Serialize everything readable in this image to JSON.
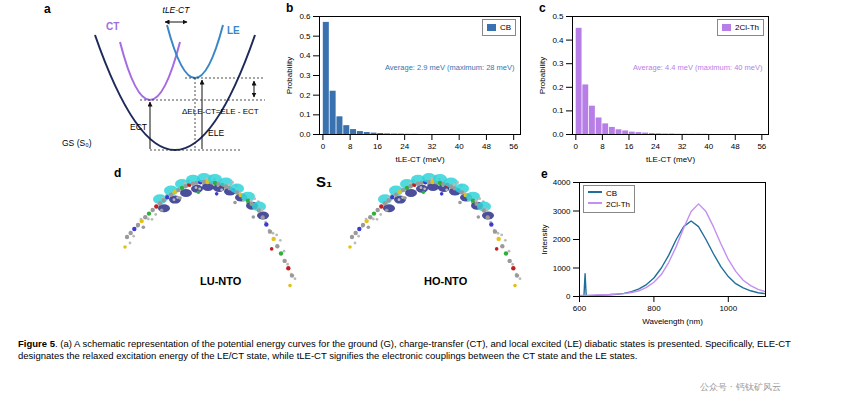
{
  "chart_data": [
    {
      "panel": "b",
      "type": "histogram",
      "xlabel": "tLE-CT (meV)",
      "ylabel": "Probability",
      "bins": [
        0,
        2,
        4,
        6,
        8,
        10,
        12,
        14,
        16,
        18,
        20,
        22,
        24,
        26,
        28
      ],
      "series": [
        {
          "name": "CB",
          "color": "#3a72b0",
          "values": [
            0.57,
            0.22,
            0.09,
            0.045,
            0.025,
            0.015,
            0.01,
            0.007,
            0.005,
            0.003,
            0.002,
            0.002,
            0.001,
            0.001
          ]
        }
      ],
      "annotation": "Average: 2.9 meV (maximum: 28 meV)",
      "xlim": [
        -1,
        58
      ],
      "xticks": [
        0,
        8,
        16,
        24,
        32,
        40,
        48,
        56
      ],
      "ylim": [
        0,
        0.6
      ],
      "yticks": [
        {
          "value": 0,
          "label": "0.0"
        },
        0.1,
        0.2,
        0.3,
        0.4,
        0.5,
        0.6
      ],
      "legend": "top-right"
    },
    {
      "panel": "c",
      "type": "histogram",
      "xlabel": "tLE-CT (meV)",
      "ylabel": "Probability",
      "bins": [
        0,
        2,
        4,
        6,
        8,
        10,
        12,
        14,
        16,
        18,
        20,
        22,
        24,
        26,
        28,
        30,
        32,
        34,
        36,
        38,
        40
      ],
      "series": [
        {
          "name": "2Cl-Th",
          "color": "#b77ee8",
          "values": [
            0.45,
            0.21,
            0.12,
            0.07,
            0.045,
            0.03,
            0.02,
            0.015,
            0.01,
            0.008,
            0.006,
            0.004,
            0.003,
            0.002,
            0.002,
            0.001,
            0.001,
            0.001,
            0.001,
            0.001
          ]
        }
      ],
      "annotation": "Average: 4.4 meV (maximum: 40 meV)",
      "xlim": [
        -1,
        58
      ],
      "xticks": [
        0,
        8,
        16,
        24,
        32,
        40,
        48,
        56
      ],
      "ylim": [
        0,
        0.5
      ],
      "yticks": [
        {
          "value": 0,
          "label": "0.0"
        },
        0.1,
        0.2,
        0.3,
        0.4,
        0.5
      ],
      "legend": "top-right"
    },
    {
      "panel": "e",
      "type": "line",
      "xlabel": "Wavelength (nm)",
      "ylabel": "Intensity",
      "x": [
        600,
        612,
        615,
        618,
        640,
        660,
        680,
        700,
        720,
        740,
        760,
        780,
        800,
        820,
        840,
        860,
        880,
        900,
        920,
        940,
        960,
        980,
        1000,
        1020,
        1040,
        1060,
        1080,
        1100
      ],
      "series": [
        {
          "name": "CB",
          "color": "#1f6f9a",
          "values": [
            30,
            30,
            800,
            30,
            40,
            50,
            60,
            80,
            110,
            170,
            270,
            420,
            650,
            1000,
            1450,
            2000,
            2450,
            2650,
            2450,
            2000,
            1500,
            1050,
            700,
            450,
            300,
            200,
            130,
            100
          ]
        },
        {
          "name": "2Cl-Th",
          "color": "#c38ff0",
          "values": [
            40,
            40,
            40,
            40,
            50,
            60,
            70,
            90,
            100,
            140,
            200,
            320,
            500,
            770,
            1200,
            1750,
            2400,
            2980,
            3250,
            2980,
            2450,
            1850,
            1300,
            880,
            570,
            380,
            250,
            170
          ]
        }
      ],
      "xlim": [
        600,
        1100
      ],
      "xticks": [
        600,
        800,
        1000
      ],
      "ylim": [
        0,
        4000
      ],
      "yticks": [
        0,
        1000,
        2000,
        3000,
        4000
      ],
      "legend": "top-left"
    }
  ],
  "diagram_a": {
    "panel": "a",
    "ct": "CT",
    "le": "LE",
    "coupling": "tLE-CT",
    "gap": "ΔELE-CT=ELE - ECT",
    "e_ct": "ECT",
    "e_le": "ELE",
    "ground": "GS (S₀)"
  },
  "panel_d": {
    "panel": "d",
    "state": "S₁",
    "labels": [
      "LU-NTO",
      "HO-NTO"
    ]
  },
  "caption": {
    "label": "Figure 5",
    "text": ". (a) A schematic representation of the potential energy curves for the ground (G), charge-transfer (CT), and local excited (LE) diabatic states is presented. Specifically, ELE-CT designates the relaxed excitation energy of the LE/CT state, while tLE-CT signifies the electronic couplings between the CT state and the LE states."
  },
  "watermark": "公众号 · 钙钛矿风云"
}
